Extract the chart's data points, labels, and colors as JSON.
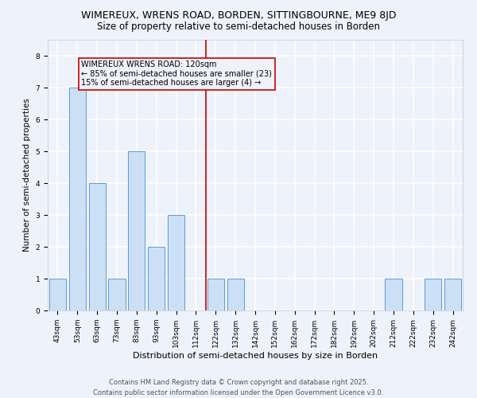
{
  "title": "WIMEREUX, WRENS ROAD, BORDEN, SITTINGBOURNE, ME9 8JD",
  "subtitle": "Size of property relative to semi-detached houses in Borden",
  "xlabel": "Distribution of semi-detached houses by size in Borden",
  "ylabel": "Number of semi-detached properties",
  "categories": [
    "43sqm",
    "53sqm",
    "63sqm",
    "73sqm",
    "83sqm",
    "93sqm",
    "103sqm",
    "112sqm",
    "122sqm",
    "132sqm",
    "142sqm",
    "152sqm",
    "162sqm",
    "172sqm",
    "182sqm",
    "192sqm",
    "202sqm",
    "212sqm",
    "222sqm",
    "232sqm",
    "242sqm"
  ],
  "values": [
    1,
    7,
    4,
    1,
    5,
    2,
    3,
    0,
    1,
    1,
    0,
    0,
    0,
    0,
    0,
    0,
    0,
    1,
    0,
    1,
    1
  ],
  "bar_color": "#cce0f5",
  "bar_edge_color": "#5b9bd5",
  "vline_x": 7.5,
  "vline_color": "#cc0000",
  "annotation_title": "WIMEREUX WRENS ROAD: 120sqm",
  "annotation_line1": "← 85% of semi-detached houses are smaller (23)",
  "annotation_line2": "15% of semi-detached houses are larger (4) →",
  "annotation_box_color": "#cc0000",
  "ylim": [
    0,
    8.5
  ],
  "yticks": [
    0,
    1,
    2,
    3,
    4,
    5,
    6,
    7,
    8
  ],
  "background_color": "#eef2fa",
  "grid_color": "#ffffff",
  "footer_line1": "Contains HM Land Registry data © Crown copyright and database right 2025.",
  "footer_line2": "Contains public sector information licensed under the Open Government Licence v3.0.",
  "title_fontsize": 9,
  "subtitle_fontsize": 8.5,
  "xlabel_fontsize": 8,
  "ylabel_fontsize": 7.5,
  "tick_fontsize": 6.5,
  "annotation_fontsize": 7,
  "footer_fontsize": 6
}
